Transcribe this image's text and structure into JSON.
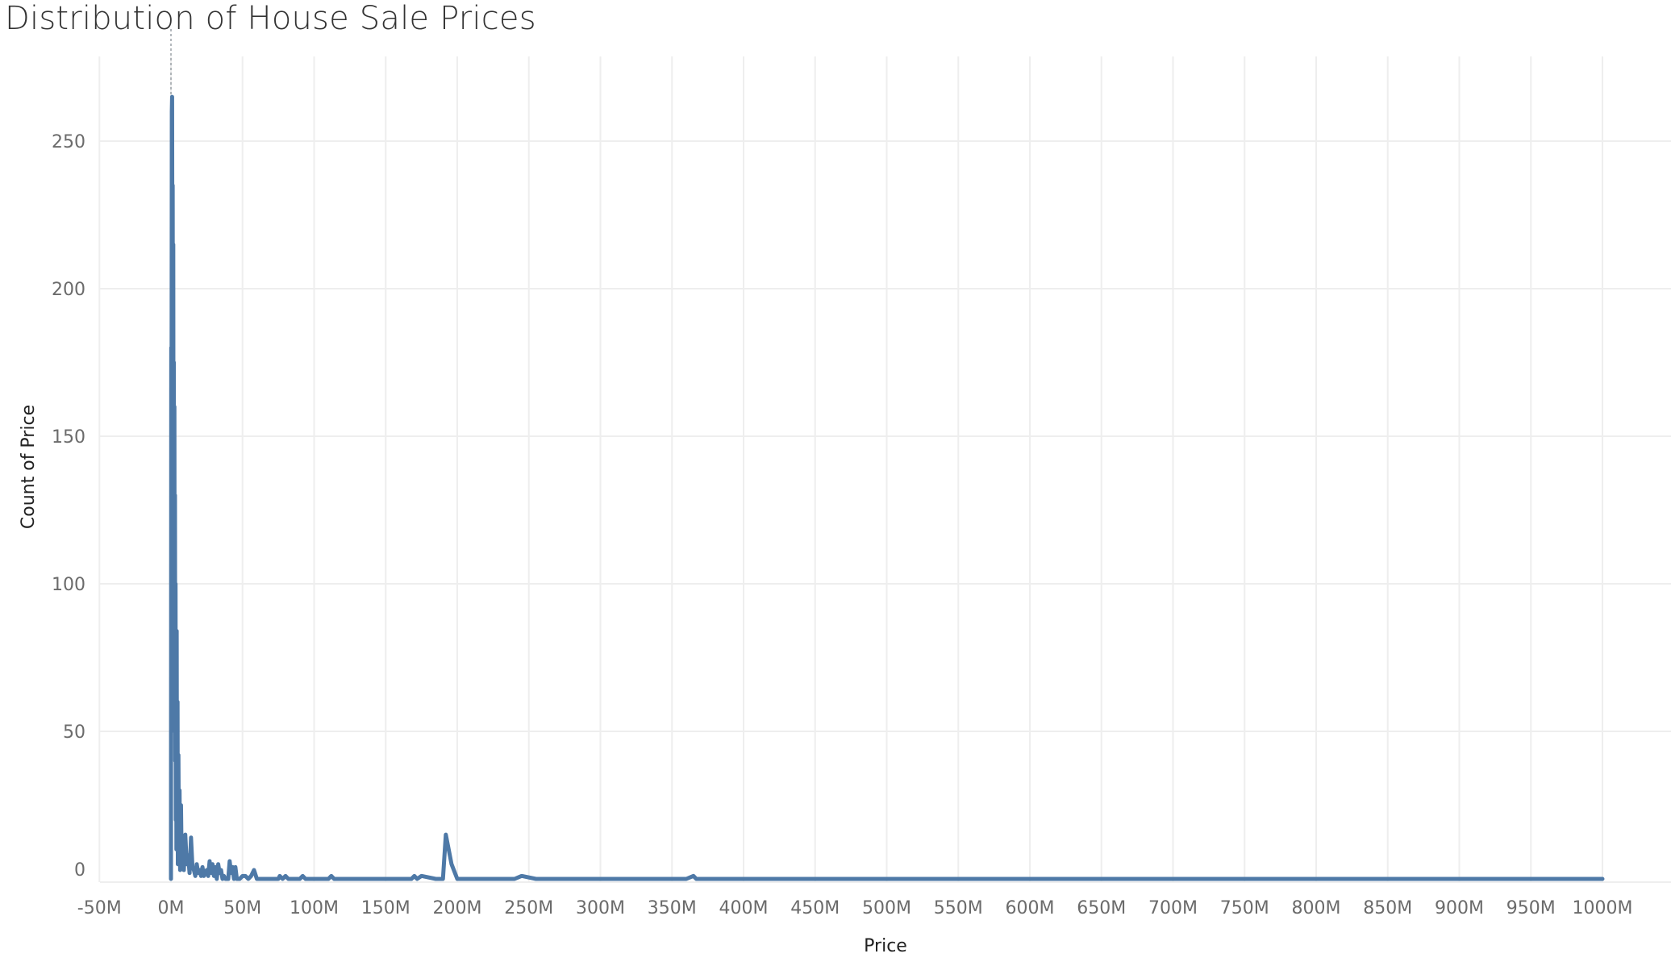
{
  "chart_data": {
    "type": "line",
    "title": "Distribution of House Sale Prices",
    "xlabel": "Price",
    "ylabel": "Count of Price",
    "x_ticks": [
      "-50M",
      "0M",
      "50M",
      "100M",
      "150M",
      "200M",
      "250M",
      "300M",
      "350M",
      "400M",
      "450M",
      "500M",
      "550M",
      "600M",
      "650M",
      "700M",
      "750M",
      "800M",
      "850M",
      "900M",
      "950M",
      "1000M"
    ],
    "x_tick_values": [
      -50,
      0,
      50,
      100,
      150,
      200,
      250,
      300,
      350,
      400,
      450,
      500,
      550,
      600,
      650,
      700,
      750,
      800,
      850,
      900,
      950,
      1000
    ],
    "y_ticks": [
      "0",
      "50",
      "100",
      "150",
      "200",
      "250"
    ],
    "y_tick_values": [
      0,
      50,
      100,
      150,
      200,
      250
    ],
    "xlim": [
      -50,
      1040
    ],
    "ylim": [
      0,
      270
    ],
    "x_unit_note": "millions",
    "grid": true,
    "series": [
      {
        "color": "#4e79a7",
        "points": [
          [
            0,
            0
          ],
          [
            0.2,
            180
          ],
          [
            0.4,
            150
          ],
          [
            0.6,
            260
          ],
          [
            0.8,
            265
          ],
          [
            1.0,
            200
          ],
          [
            1.2,
            235
          ],
          [
            1.4,
            120
          ],
          [
            1.6,
            215
          ],
          [
            1.8,
            100
          ],
          [
            2.0,
            175
          ],
          [
            2.2,
            60
          ],
          [
            2.4,
            160
          ],
          [
            2.6,
            50
          ],
          [
            2.8,
            130
          ],
          [
            3.0,
            40
          ],
          [
            3.2,
            100
          ],
          [
            3.4,
            20
          ],
          [
            3.6,
            80
          ],
          [
            3.8,
            10
          ],
          [
            4.0,
            84
          ],
          [
            4.2,
            15
          ],
          [
            4.6,
            60
          ],
          [
            4.8,
            5
          ],
          [
            5.2,
            42
          ],
          [
            5.6,
            5
          ],
          [
            6.0,
            30
          ],
          [
            6.4,
            3
          ],
          [
            7.0,
            25
          ],
          [
            7.5,
            5
          ],
          [
            8.0,
            14
          ],
          [
            9.0,
            3
          ],
          [
            10,
            15
          ],
          [
            11,
            5
          ],
          [
            12,
            8
          ],
          [
            13,
            2
          ],
          [
            14,
            14
          ],
          [
            15,
            4
          ],
          [
            16,
            3
          ],
          [
            17,
            1
          ],
          [
            18,
            5
          ],
          [
            19,
            2
          ],
          [
            20,
            3
          ],
          [
            21,
            1
          ],
          [
            22,
            4
          ],
          [
            23,
            1
          ],
          [
            24,
            2
          ],
          [
            25,
            3
          ],
          [
            26,
            1
          ],
          [
            27,
            6
          ],
          [
            28,
            2
          ],
          [
            29,
            5
          ],
          [
            30,
            1
          ],
          [
            31,
            4
          ],
          [
            32,
            0
          ],
          [
            33,
            5
          ],
          [
            34,
            2
          ],
          [
            35,
            3
          ],
          [
            36,
            0
          ],
          [
            37,
            1
          ],
          [
            38,
            0
          ],
          [
            40,
            0
          ],
          [
            41,
            6
          ],
          [
            42,
            2
          ],
          [
            43,
            4
          ],
          [
            44,
            0
          ],
          [
            45,
            4
          ],
          [
            46,
            0
          ],
          [
            48,
            0
          ],
          [
            50,
            1
          ],
          [
            52,
            1
          ],
          [
            54,
            0
          ],
          [
            56,
            1
          ],
          [
            58,
            3
          ],
          [
            60,
            0
          ],
          [
            75,
            0
          ],
          [
            76,
            1
          ],
          [
            78,
            0
          ],
          [
            80,
            1
          ],
          [
            82,
            0
          ],
          [
            90,
            0
          ],
          [
            92,
            1
          ],
          [
            94,
            0
          ],
          [
            110,
            0
          ],
          [
            112,
            1
          ],
          [
            114,
            0
          ],
          [
            168,
            0
          ],
          [
            170,
            1
          ],
          [
            172,
            0
          ],
          [
            175,
            1
          ],
          [
            185,
            0
          ],
          [
            190,
            0
          ],
          [
            192,
            15
          ],
          [
            196,
            5
          ],
          [
            200,
            0
          ],
          [
            240,
            0
          ],
          [
            245,
            1
          ],
          [
            255,
            0
          ],
          [
            360,
            0
          ],
          [
            365,
            1
          ],
          [
            367,
            0
          ],
          [
            1000,
            0
          ]
        ]
      }
    ]
  }
}
